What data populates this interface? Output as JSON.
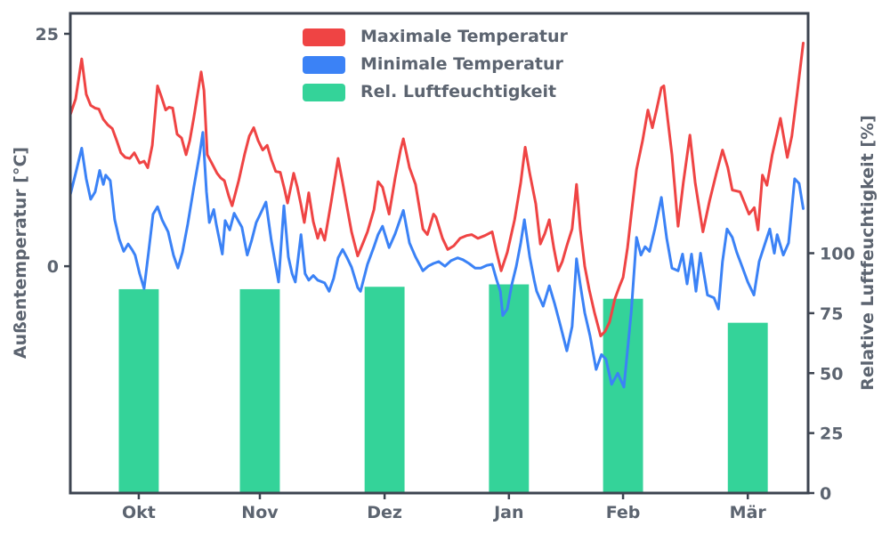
{
  "chart_data": {
    "type": "line",
    "title": "",
    "colors": {
      "max_temp": "#ef4444",
      "min_temp": "#3b82f6",
      "humidity": "#34d399",
      "text": "#5c6470",
      "spine": "#3d4450",
      "background": "#ffffff"
    },
    "legend": [
      {
        "label": "Maximale Temperatur",
        "color": "#ef4444"
      },
      {
        "label": "Minimale Temperatur",
        "color": "#3b82f6"
      },
      {
        "label": "Rel. Luftfeuchtigkeit",
        "color": "#34d399"
      }
    ],
    "x_axis": {
      "tick_labels": [
        "Okt",
        "Nov",
        "Dez",
        "Jan",
        "Feb",
        "Mär"
      ],
      "tick_days": [
        16.8,
        46.5,
        77.1,
        107.6,
        135.6,
        166.2
      ],
      "range_days": [
        0,
        181
      ]
    },
    "y_axis_left": {
      "label": "Außentemperatur [°C]",
      "ticks": [
        0,
        25
      ],
      "range": [
        -24.4,
        27.2
      ]
    },
    "y_axis_right": {
      "label": "Relative Luftfeuchtigkeit [%]",
      "ticks": [
        0,
        25,
        50,
        75,
        100
      ],
      "range": [
        0,
        200
      ]
    },
    "series": [
      {
        "name": "Maximale Temperatur",
        "type": "line",
        "axis": "left",
        "color": "#ef4444",
        "points": [
          [
            0,
            16.3
          ],
          [
            1.3,
            18
          ],
          [
            2.8,
            22.3
          ],
          [
            3.9,
            18.5
          ],
          [
            5,
            17.3
          ],
          [
            6.1,
            17
          ],
          [
            7,
            16.9
          ],
          [
            8.1,
            15.8
          ],
          [
            9.2,
            15.2
          ],
          [
            10.3,
            14.8
          ],
          [
            11.4,
            13.5
          ],
          [
            12.4,
            12.2
          ],
          [
            13.5,
            11.7
          ],
          [
            14.6,
            11.6
          ],
          [
            15.7,
            12.2
          ],
          [
            17,
            11.1
          ],
          [
            18.1,
            11.3
          ],
          [
            19,
            10.6
          ],
          [
            20.1,
            13
          ],
          [
            21.4,
            19.4
          ],
          [
            22.3,
            18.3
          ],
          [
            23.4,
            16.8
          ],
          [
            24.2,
            17.1
          ],
          [
            25.1,
            17
          ],
          [
            26.2,
            14.2
          ],
          [
            27.3,
            13.8
          ],
          [
            28.4,
            12
          ],
          [
            29.3,
            13.5
          ],
          [
            30.3,
            16
          ],
          [
            32.1,
            20.9
          ],
          [
            32.8,
            18.9
          ],
          [
            33.6,
            12
          ],
          [
            34.7,
            11.1
          ],
          [
            36,
            10
          ],
          [
            36.9,
            9.5
          ],
          [
            37.8,
            9.2
          ],
          [
            38.9,
            7.5
          ],
          [
            39.7,
            6.5
          ],
          [
            41.3,
            9.2
          ],
          [
            42.8,
            12.1
          ],
          [
            43.9,
            14
          ],
          [
            45,
            14.9
          ],
          [
            46.1,
            13.5
          ],
          [
            47.2,
            12.5
          ],
          [
            48.3,
            13
          ],
          [
            49.3,
            11.5
          ],
          [
            50.4,
            10.2
          ],
          [
            51.5,
            10.1
          ],
          [
            52.6,
            8.2
          ],
          [
            53.3,
            6.8
          ],
          [
            54.8,
            10
          ],
          [
            55.7,
            8.5
          ],
          [
            56.6,
            6.6
          ],
          [
            57.4,
            4.7
          ],
          [
            58.5,
            7.9
          ],
          [
            59.6,
            4.8
          ],
          [
            60.7,
            3
          ],
          [
            61.4,
            4
          ],
          [
            62.4,
            2.8
          ],
          [
            64,
            6.9
          ],
          [
            65.7,
            11.6
          ],
          [
            66.8,
            9
          ],
          [
            67.9,
            6.3
          ],
          [
            69,
            3.7
          ],
          [
            70.5,
            1.1
          ],
          [
            71.8,
            2.5
          ],
          [
            72.9,
            3.7
          ],
          [
            74.5,
            6.1
          ],
          [
            75.5,
            9.1
          ],
          [
            76.6,
            8.5
          ],
          [
            78.2,
            5.6
          ],
          [
            79.7,
            9.5
          ],
          [
            81,
            12.5
          ],
          [
            81.7,
            13.7
          ],
          [
            83.2,
            10.6
          ],
          [
            84.7,
            8.8
          ],
          [
            86.5,
            4
          ],
          [
            87.6,
            3.4
          ],
          [
            89.1,
            5.6
          ],
          [
            89.7,
            5.3
          ],
          [
            91.3,
            3
          ],
          [
            92.6,
            1.8
          ],
          [
            94.1,
            2.2
          ],
          [
            95.6,
            3
          ],
          [
            97.2,
            3.3
          ],
          [
            98.5,
            3.4
          ],
          [
            100,
            3
          ],
          [
            101.7,
            3.3
          ],
          [
            103.5,
            3.7
          ],
          [
            104.6,
            1.5
          ],
          [
            105.7,
            -0.5
          ],
          [
            107.2,
            1.5
          ],
          [
            109,
            5
          ],
          [
            110.5,
            9
          ],
          [
            111.6,
            12.8
          ],
          [
            112.7,
            10
          ],
          [
            114.2,
            6.7
          ],
          [
            115.3,
            2.4
          ],
          [
            116.4,
            3.5
          ],
          [
            117.5,
            5
          ],
          [
            118.6,
            2
          ],
          [
            119.7,
            -0.5
          ],
          [
            120.7,
            0.5
          ],
          [
            121.8,
            2.2
          ],
          [
            123.1,
            4
          ],
          [
            124.2,
            8.8
          ],
          [
            125.1,
            4
          ],
          [
            126.2,
            0
          ],
          [
            127.3,
            -2.5
          ],
          [
            128.6,
            -5
          ],
          [
            130.1,
            -7.5
          ],
          [
            131.2,
            -7
          ],
          [
            132.3,
            -6
          ],
          [
            133.6,
            -3.5
          ],
          [
            134.7,
            -2.2
          ],
          [
            135.6,
            -1.2
          ],
          [
            136.7,
            2
          ],
          [
            137.6,
            5.5
          ],
          [
            138.9,
            10.4
          ],
          [
            140.4,
            13.5
          ],
          [
            141.7,
            16.8
          ],
          [
            142.8,
            14.9
          ],
          [
            143.9,
            17
          ],
          [
            145,
            19.2
          ],
          [
            145.6,
            19.4
          ],
          [
            146.5,
            16
          ],
          [
            147.6,
            12
          ],
          [
            149.1,
            4.3
          ],
          [
            150.4,
            9
          ],
          [
            152,
            14.1
          ],
          [
            153.3,
            9
          ],
          [
            155.2,
            3.7
          ],
          [
            156.8,
            7
          ],
          [
            158.5,
            10
          ],
          [
            160,
            12.5
          ],
          [
            161.3,
            10.6
          ],
          [
            162.4,
            8.2
          ],
          [
            164.3,
            8
          ],
          [
            166.5,
            5.6
          ],
          [
            167.8,
            6.3
          ],
          [
            168.7,
            3.9
          ],
          [
            169.8,
            9.8
          ],
          [
            170.9,
            8.7
          ],
          [
            172.2,
            12
          ],
          [
            174.2,
            15.9
          ],
          [
            175.9,
            11.7
          ],
          [
            177,
            14
          ],
          [
            178.3,
            18.5
          ],
          [
            179.8,
            24
          ]
        ]
      },
      {
        "name": "Minimale Temperatur",
        "type": "line",
        "axis": "left",
        "color": "#3b82f6",
        "points": [
          [
            0,
            7.7
          ],
          [
            1.3,
            10
          ],
          [
            2.8,
            12.7
          ],
          [
            3.9,
            9.4
          ],
          [
            5,
            7.2
          ],
          [
            6.1,
            8
          ],
          [
            7.2,
            10.3
          ],
          [
            8.1,
            8.8
          ],
          [
            8.7,
            9.8
          ],
          [
            9.8,
            9.2
          ],
          [
            10.9,
            5
          ],
          [
            12,
            2.9
          ],
          [
            13.1,
            1.6
          ],
          [
            14.2,
            2.4
          ],
          [
            15.1,
            1.8
          ],
          [
            15.9,
            1.2
          ],
          [
            17,
            -0.8
          ],
          [
            18.1,
            -2.4
          ],
          [
            19.2,
            1.5
          ],
          [
            20.3,
            5.6
          ],
          [
            21.4,
            6.4
          ],
          [
            22.5,
            5
          ],
          [
            24,
            3.7
          ],
          [
            25.3,
            1.2
          ],
          [
            26.4,
            -0.2
          ],
          [
            27.5,
            1.5
          ],
          [
            28.8,
            4.5
          ],
          [
            30.3,
            8.5
          ],
          [
            31.7,
            12
          ],
          [
            32.5,
            14.4
          ],
          [
            33.4,
            8
          ],
          [
            34.1,
            4.7
          ],
          [
            35.2,
            6.1
          ],
          [
            35.8,
            4.5
          ],
          [
            37.3,
            1.3
          ],
          [
            38,
            4.9
          ],
          [
            39.1,
            3.9
          ],
          [
            40.2,
            5.7
          ],
          [
            41.3,
            4.8
          ],
          [
            42.1,
            4.2
          ],
          [
            43.4,
            1.2
          ],
          [
            44.5,
            2.8
          ],
          [
            45.6,
            4.7
          ],
          [
            46.7,
            5.7
          ],
          [
            48,
            6.9
          ],
          [
            49.3,
            2.8
          ],
          [
            51.1,
            -1.7
          ],
          [
            52.4,
            6.5
          ],
          [
            53.5,
            1
          ],
          [
            54.4,
            -0.8
          ],
          [
            55.2,
            -1.7
          ],
          [
            56.6,
            3.4
          ],
          [
            57.6,
            -0.8
          ],
          [
            58.5,
            -1.5
          ],
          [
            59.6,
            -1
          ],
          [
            60.7,
            -1.5
          ],
          [
            62.4,
            -1.8
          ],
          [
            63.5,
            -2.7
          ],
          [
            64.6,
            -1.3
          ],
          [
            65.7,
            0.9
          ],
          [
            66.8,
            1.8
          ],
          [
            67.9,
            0.9
          ],
          [
            69,
            -0.1
          ],
          [
            70.5,
            -2.3
          ],
          [
            71.2,
            -2.7
          ],
          [
            72.9,
            0.2
          ],
          [
            74.5,
            2.1
          ],
          [
            75.5,
            3.4
          ],
          [
            76.6,
            4.3
          ],
          [
            78.2,
            2
          ],
          [
            79.7,
            3.5
          ],
          [
            81.7,
            6
          ],
          [
            83.2,
            2.5
          ],
          [
            84.7,
            1
          ],
          [
            86.5,
            -0.5
          ],
          [
            87.8,
            0
          ],
          [
            89.1,
            0.3
          ],
          [
            90.4,
            0.5
          ],
          [
            91.9,
            0
          ],
          [
            93.4,
            0.6
          ],
          [
            95,
            0.9
          ],
          [
            96.3,
            0.7
          ],
          [
            97.8,
            0.3
          ],
          [
            99.3,
            -0.2
          ],
          [
            100.7,
            -0.2
          ],
          [
            102.2,
            0.1
          ],
          [
            103.5,
            0.2
          ],
          [
            104.6,
            -1.5
          ],
          [
            105.5,
            -2.7
          ],
          [
            106.1,
            -5.3
          ],
          [
            107.2,
            -4.6
          ],
          [
            108.3,
            -2
          ],
          [
            109.4,
            0
          ],
          [
            110.5,
            2.5
          ],
          [
            111.4,
            5
          ],
          [
            112.7,
            1
          ],
          [
            113.8,
            -1.5
          ],
          [
            114.4,
            -2.7
          ],
          [
            116,
            -4.3
          ],
          [
            117.5,
            -2.1
          ],
          [
            118.8,
            -4
          ],
          [
            120.3,
            -6.5
          ],
          [
            121.8,
            -9.1
          ],
          [
            123.1,
            -6.5
          ],
          [
            124.2,
            0.8
          ],
          [
            125.1,
            -2
          ],
          [
            126.2,
            -5
          ],
          [
            127.5,
            -7.5
          ],
          [
            129,
            -11.1
          ],
          [
            130.3,
            -9.5
          ],
          [
            131.4,
            -10
          ],
          [
            132.8,
            -12.7
          ],
          [
            134.3,
            -11.5
          ],
          [
            135.8,
            -13
          ],
          [
            136.7,
            -9
          ],
          [
            137.6,
            -5
          ],
          [
            138.9,
            3.1
          ],
          [
            140,
            1.2
          ],
          [
            141,
            2.1
          ],
          [
            142.1,
            1.6
          ],
          [
            143.4,
            4
          ],
          [
            145,
            7.4
          ],
          [
            146.3,
            3
          ],
          [
            147.6,
            -0.2
          ],
          [
            149.1,
            -0.5
          ],
          [
            150.2,
            1.3
          ],
          [
            151.3,
            -1.9
          ],
          [
            152.4,
            1.3
          ],
          [
            153.5,
            -2.7
          ],
          [
            154.6,
            1.4
          ],
          [
            156.3,
            -3.1
          ],
          [
            157.9,
            -3.4
          ],
          [
            159,
            -4.6
          ],
          [
            160,
            0.5
          ],
          [
            161.1,
            4
          ],
          [
            162.4,
            3.1
          ],
          [
            163.5,
            1.5
          ],
          [
            164.6,
            0.2
          ],
          [
            166.2,
            -1.7
          ],
          [
            167.7,
            -3.1
          ],
          [
            169,
            0.5
          ],
          [
            170.1,
            2
          ],
          [
            171.6,
            4
          ],
          [
            172.7,
            1.4
          ],
          [
            173.4,
            3.4
          ],
          [
            174.9,
            1.2
          ],
          [
            176.2,
            2.5
          ],
          [
            177.7,
            9.4
          ],
          [
            178.8,
            8.9
          ],
          [
            179.8,
            6.2
          ]
        ]
      },
      {
        "name": "Rel. Luftfeuchtigkeit",
        "type": "bar",
        "axis": "right",
        "color": "#34d399",
        "categories": [
          "Okt",
          "Nov",
          "Dez",
          "Jan",
          "Feb",
          "Mär"
        ],
        "center_days": [
          16.8,
          46.5,
          77.1,
          107.6,
          135.6,
          166.2
        ],
        "values": [
          85,
          85,
          86,
          87,
          81,
          71
        ],
        "bar_width_days": 9.8
      }
    ]
  }
}
